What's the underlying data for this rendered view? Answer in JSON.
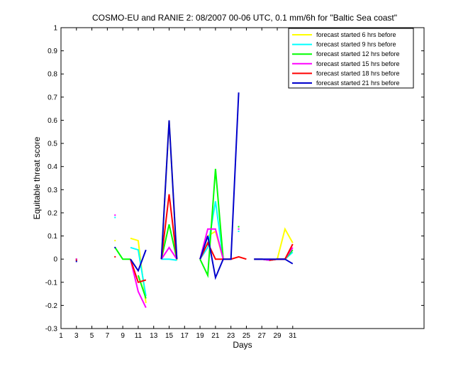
{
  "chart_data": {
    "type": "line",
    "title": "COSMO-EU and RANIE 2: 08/2007 00-06 UTC, 0.1 mm/6h for \"Baltic Sea coast\"",
    "xlabel": "Days",
    "ylabel": "Equitable threat score",
    "xlim": [
      1,
      48
    ],
    "ylim": [
      -0.3,
      1
    ],
    "xticks": [
      1,
      3,
      5,
      7,
      9,
      11,
      13,
      15,
      17,
      19,
      21,
      23,
      25,
      27,
      29,
      31
    ],
    "yticks": [
      -0.3,
      -0.2,
      -0.1,
      0,
      0.1,
      0.2,
      0.3,
      0.4,
      0.5,
      0.6,
      0.7,
      0.8,
      0.9,
      1
    ],
    "ytick_labels": [
      "-0.3",
      "-0.2",
      "-0.1",
      "0",
      "0.1",
      "0.2",
      "0.3",
      "0.4",
      "0.5",
      "0.6",
      "0.7",
      "0.8",
      "0.9",
      "1"
    ],
    "legend_position": "top-right",
    "series": [
      {
        "name": "forecast started 6 hrs before",
        "color": "#ffff00",
        "points": [
          [
            3,
            0
          ],
          null,
          [
            8,
            0.08
          ],
          null,
          [
            10,
            0.09
          ],
          [
            11,
            0.08
          ],
          [
            12,
            -0.19
          ],
          null,
          [
            14,
            0
          ],
          [
            15,
            0.6
          ],
          [
            16,
            -0.005
          ],
          null,
          [
            19,
            0
          ],
          [
            20,
            0.1
          ],
          [
            21,
            0.12
          ],
          [
            22,
            0
          ],
          null,
          [
            24,
            0.14
          ],
          null,
          [
            26,
            0
          ],
          [
            27,
            0
          ],
          [
            28,
            -0.005
          ],
          [
            29,
            0
          ],
          [
            30,
            0.13
          ],
          [
            31,
            0.07
          ]
        ]
      },
      {
        "name": "forecast started 9 hrs before",
        "color": "#00ffff",
        "points": [
          [
            3,
            -0.005
          ],
          null,
          [
            8,
            0.18
          ],
          null,
          [
            10,
            0.05
          ],
          [
            11,
            0.04
          ],
          [
            12,
            -0.16
          ],
          null,
          [
            14,
            0
          ],
          [
            15,
            0
          ],
          [
            16,
            -0.005
          ],
          null,
          [
            19,
            0
          ],
          [
            20,
            0.05
          ],
          [
            21,
            0.25
          ],
          [
            22,
            0
          ],
          null,
          [
            24,
            0.12
          ],
          null,
          [
            26,
            0
          ],
          [
            27,
            0
          ],
          [
            28,
            -0.005
          ],
          [
            29,
            0
          ],
          [
            30,
            0
          ],
          [
            31,
            0.03
          ]
        ]
      },
      {
        "name": "forecast started 12 hrs before",
        "color": "#00ff00",
        "points": [
          [
            3,
            0
          ],
          null,
          [
            8,
            0.05
          ],
          [
            9,
            0
          ],
          [
            10,
            0
          ],
          null,
          [
            11,
            -0.07
          ],
          [
            12,
            -0.17
          ],
          null,
          [
            14,
            0
          ],
          [
            15,
            0.15
          ],
          [
            16,
            0
          ],
          null,
          [
            19,
            0
          ],
          [
            20,
            -0.07
          ],
          [
            21,
            0.39
          ],
          [
            22,
            0
          ],
          null,
          [
            24,
            0.14
          ],
          null,
          [
            26,
            0
          ],
          [
            27,
            0
          ],
          [
            28,
            -0.005
          ],
          [
            29,
            0
          ],
          [
            30,
            0
          ],
          [
            31,
            0.04
          ]
        ]
      },
      {
        "name": "forecast started 15 hrs before",
        "color": "#ff00ff",
        "points": [
          [
            3,
            0
          ],
          null,
          [
            8,
            0.19
          ],
          null,
          [
            10,
            0
          ],
          [
            11,
            -0.14
          ],
          [
            12,
            -0.21
          ],
          null,
          [
            14,
            0
          ],
          [
            15,
            0.05
          ],
          [
            16,
            0
          ],
          null,
          [
            19,
            0
          ],
          [
            20,
            0.13
          ],
          [
            21,
            0.13
          ],
          [
            22,
            0
          ],
          null,
          [
            24,
            0.13
          ],
          null,
          [
            26,
            0
          ],
          [
            27,
            0
          ],
          [
            28,
            -0.005
          ],
          [
            29,
            0
          ],
          [
            30,
            0
          ],
          [
            31,
            0.05
          ]
        ]
      },
      {
        "name": "forecast started 18 hrs before",
        "color": "#ff0000",
        "points": [
          [
            3,
            -0.005
          ],
          null,
          [
            8,
            0.01
          ],
          null,
          [
            10,
            0
          ],
          [
            11,
            -0.1
          ],
          [
            12,
            -0.09
          ],
          null,
          [
            14,
            0
          ],
          [
            15,
            0.28
          ],
          [
            16,
            0
          ],
          null,
          [
            19,
            0
          ],
          [
            20,
            0.07
          ],
          [
            21,
            0
          ],
          [
            22,
            0
          ],
          [
            23,
            0
          ],
          [
            24,
            0.01
          ],
          [
            25,
            0
          ],
          null,
          [
            28,
            -0.005
          ],
          [
            29,
            0
          ],
          [
            30,
            0
          ],
          [
            31,
            0.065
          ]
        ]
      },
      {
        "name": "forecast started 21 hrs before",
        "color": "#0000cc",
        "points": [
          [
            3,
            -0.01
          ],
          null,
          [
            8,
            0.05
          ],
          null,
          [
            10,
            0
          ],
          [
            11,
            -0.05
          ],
          [
            12,
            0.04
          ],
          null,
          [
            14,
            0
          ],
          [
            15,
            0.6
          ],
          [
            16,
            0
          ],
          null,
          [
            19,
            0
          ],
          [
            20,
            0.1
          ],
          [
            21,
            -0.08
          ],
          [
            22,
            0
          ],
          [
            23,
            0
          ],
          [
            24,
            0.72
          ],
          null,
          [
            26,
            0
          ],
          [
            27,
            0
          ],
          [
            28,
            0
          ],
          [
            29,
            0
          ],
          [
            30,
            0
          ],
          [
            31,
            -0.02
          ]
        ]
      }
    ]
  }
}
